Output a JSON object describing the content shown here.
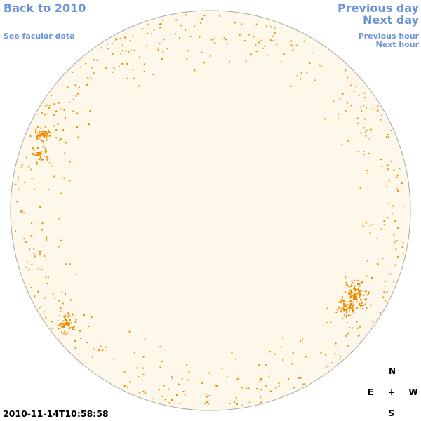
{
  "header": {
    "back_link": "Back to 2010",
    "facular_link": "See facular data",
    "previous_day": "Previous day",
    "next_day": "Next day",
    "previous_hour": "Previous hour",
    "next_hour": "Next hour"
  },
  "timestamp": "2010-11-14T10:58:58",
  "compass": {
    "north": "N",
    "east": "E",
    "center": "+",
    "west": "W",
    "south": "S"
  }
}
